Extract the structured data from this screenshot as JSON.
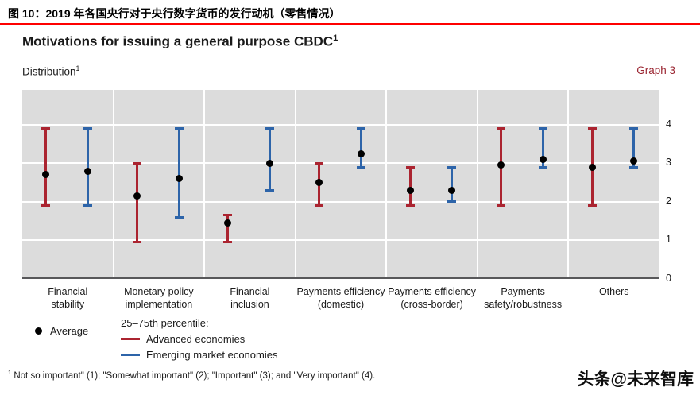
{
  "header": {
    "caption": "图 10：2019 年各国央行对于央行数字货币的发行动机（零售情况）",
    "rule_color": "#fe0000"
  },
  "chart_data": {
    "type": "error-bar",
    "title": "Motivations for issuing a general purpose CBDC",
    "title_sup": "1",
    "subtitle": "Distribution",
    "subtitle_sup": "1",
    "graph_label": "Graph 3",
    "categories": [
      "Financial\nstability",
      "Monetary policy\nimplementation",
      "Financial\ninclusion",
      "Payments efficiency\n(domestic)",
      "Payments efficiency\n(cross-border)",
      "Payments\nsafety/robustness",
      "Others"
    ],
    "ylim": [
      0,
      4
    ],
    "yticks": [
      0,
      1,
      2,
      3,
      4
    ],
    "grid": true,
    "legend_position": "bottom-left",
    "plot_bg": "#dcdcdc",
    "average_marker_color": "#000000",
    "legend": {
      "average": "Average",
      "percentile_heading": "25–75th percentile:"
    },
    "series": [
      {
        "name": "Advanced economies",
        "color": "#ab2430",
        "p25": [
          1.9,
          0.95,
          0.95,
          1.9,
          1.9,
          1.9,
          1.9
        ],
        "p75": [
          3.9,
          3.0,
          1.65,
          3.0,
          2.9,
          3.9,
          3.9
        ],
        "average": [
          2.7,
          2.15,
          1.45,
          2.5,
          2.3,
          2.95,
          2.9
        ]
      },
      {
        "name": "Emerging market economies",
        "color": "#2d64a9",
        "p25": [
          1.9,
          1.6,
          2.3,
          2.9,
          2.0,
          2.9,
          2.9
        ],
        "p75": [
          3.9,
          3.9,
          3.9,
          3.9,
          2.9,
          3.9,
          3.9
        ],
        "average": [
          2.8,
          2.6,
          3.0,
          3.25,
          2.3,
          3.1,
          3.05
        ]
      }
    ],
    "footnote_sup": "1",
    "footnote": "Not so important\" (1); \"Somewhat important\" (2); \"Important\" (3); and \"Very important\" (4)."
  },
  "watermark": "头条@未来智库"
}
